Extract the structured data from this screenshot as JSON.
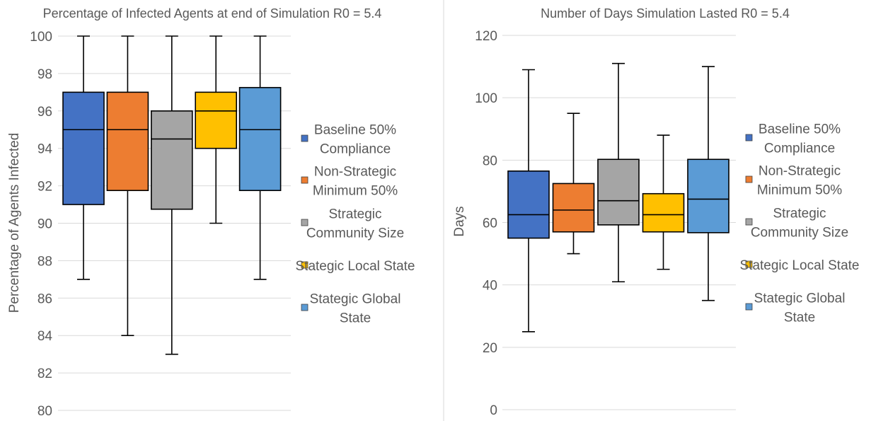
{
  "chart_data": [
    {
      "type": "box",
      "title": "Percentage of Infected Agents at end of Simulation R0 = 5.4",
      "xlabel": "",
      "ylabel": "Percentage of Agents Infected",
      "ylim": [
        80,
        100
      ],
      "yticks": [
        80,
        82,
        84,
        86,
        88,
        90,
        92,
        94,
        96,
        98,
        100
      ],
      "grid": true,
      "legend_position": "right",
      "series": [
        {
          "name": "Baseline 50% Compliance",
          "legend_lines": [
            "Baseline 50%",
            "Compliance"
          ],
          "color": "#4472C4",
          "min": 87,
          "q1": 91,
          "median": 95,
          "q3": 97,
          "max": 100
        },
        {
          "name": "Non-Strategic Minimum 50%",
          "legend_lines": [
            "Non-Strategic",
            "Minimum 50%"
          ],
          "color": "#ED7D31",
          "min": 84,
          "q1": 91.75,
          "median": 95,
          "q3": 97,
          "max": 100
        },
        {
          "name": "Strategic Community Size",
          "legend_lines": [
            "Strategic",
            "Community Size"
          ],
          "color": "#A5A5A5",
          "min": 83,
          "q1": 90.75,
          "median": 94.5,
          "q3": 96,
          "max": 100
        },
        {
          "name": "Stategic Local State",
          "legend_lines": [
            "Stategic Local State"
          ],
          "color": "#FFC000",
          "min": 90,
          "q1": 94,
          "median": 96,
          "q3": 97,
          "max": 100
        },
        {
          "name": "Stategic Global State",
          "legend_lines": [
            "Stategic Global",
            "State"
          ],
          "color": "#5B9BD5",
          "min": 87,
          "q1": 91.75,
          "median": 95,
          "q3": 97.25,
          "max": 100
        }
      ]
    },
    {
      "type": "box",
      "title": "Number of Days Simulation Lasted R0 = 5.4",
      "xlabel": "",
      "ylabel": "Days",
      "ylim": [
        0,
        120
      ],
      "yticks": [
        0,
        20,
        40,
        60,
        80,
        100,
        120
      ],
      "grid": true,
      "legend_position": "right",
      "series": [
        {
          "name": "Baseline 50% Compliance",
          "legend_lines": [
            "Baseline 50%",
            "Compliance"
          ],
          "color": "#4472C4",
          "min": 25,
          "q1": 55,
          "median": 62.5,
          "q3": 76.5,
          "max": 109
        },
        {
          "name": "Non-Strategic Minimum 50%",
          "legend_lines": [
            "Non-Strategic",
            "Minimum 50%"
          ],
          "color": "#ED7D31",
          "min": 50,
          "q1": 57,
          "median": 64,
          "q3": 72.5,
          "max": 95
        },
        {
          "name": "Strategic Community Size",
          "legend_lines": [
            "Strategic",
            "Community Size"
          ],
          "color": "#A5A5A5",
          "min": 41,
          "q1": 59.25,
          "median": 67,
          "q3": 80.25,
          "max": 111
        },
        {
          "name": "Stategic Local State",
          "legend_lines": [
            "Stategic Local State"
          ],
          "color": "#FFC000",
          "min": 45,
          "q1": 57,
          "median": 62.5,
          "q3": 69.25,
          "max": 88
        },
        {
          "name": "Stategic Global State",
          "legend_lines": [
            "Stategic Global",
            "State"
          ],
          "color": "#5B9BD5",
          "min": 35,
          "q1": 56.75,
          "median": 67.5,
          "q3": 80.25,
          "max": 110
        }
      ]
    }
  ]
}
